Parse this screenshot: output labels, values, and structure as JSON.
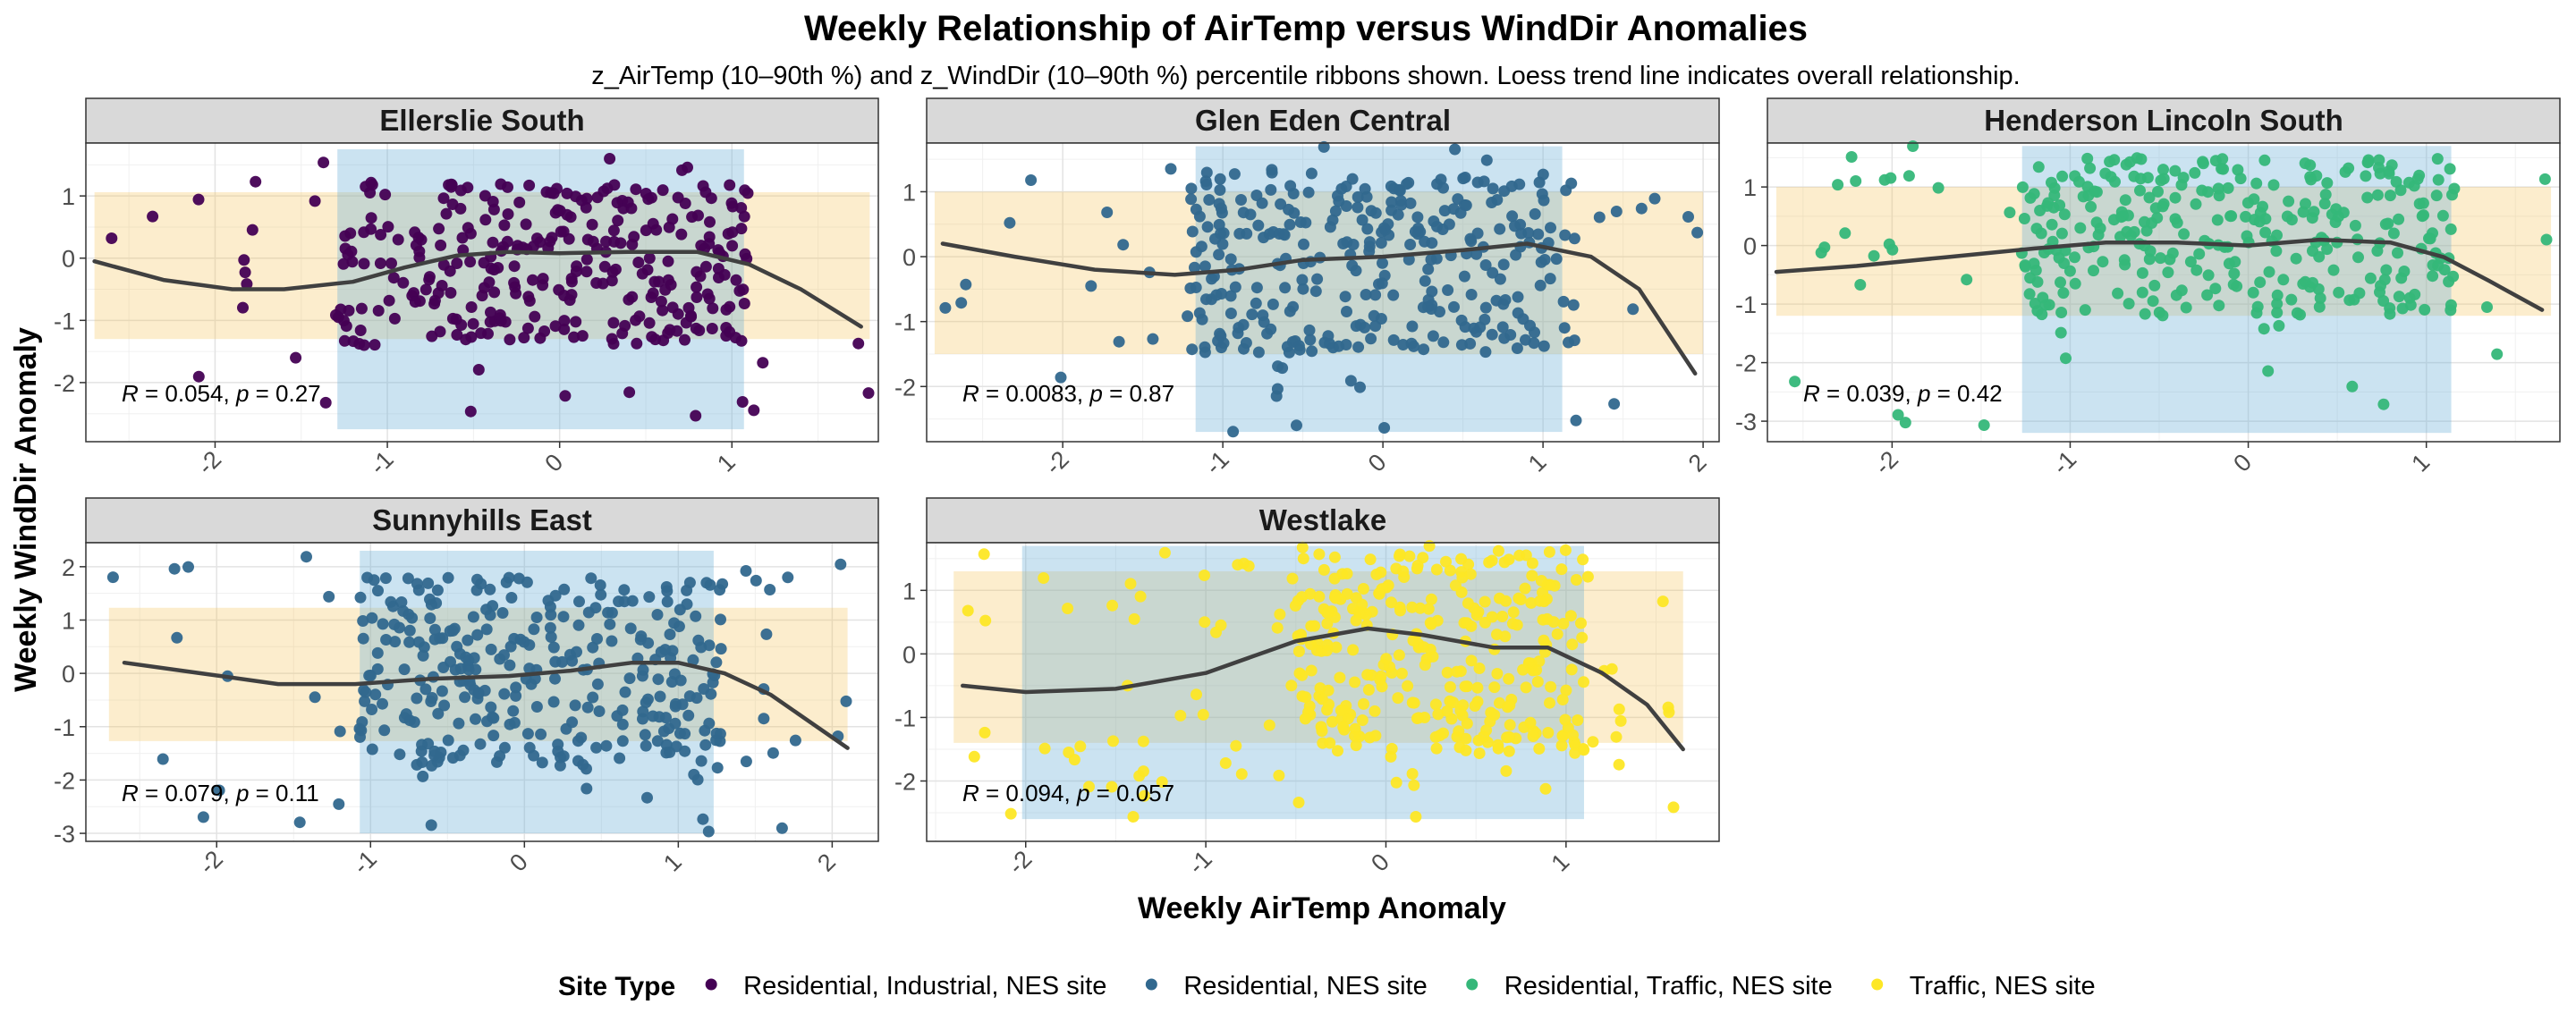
{
  "title": "Weekly Relationship of AirTemp versus WindDir Anomalies",
  "subtitle": "z_AirTemp (10–90th %) and z_WindDir (10–90th %) percentile ribbons shown. Loess trend line indicates overall relationship.",
  "x_label": "Weekly AirTemp Anomaly",
  "y_label": "Weekly WindDir Anomaly",
  "legend": {
    "title": "Site Type",
    "items": [
      {
        "label": "Residential, Industrial, NES site",
        "color": "#440154"
      },
      {
        "label": "Residential, NES site",
        "color": "#31688E"
      },
      {
        "label": "Residential, Traffic, NES site",
        "color": "#35B779"
      },
      {
        "label": "Traffic, NES site",
        "color": "#FDE725"
      }
    ]
  },
  "chart_data": {
    "type": "scatter",
    "facets": [
      {
        "name": "Ellerslie South",
        "site_type": "Residential, Industrial, NES site",
        "xlim": [
          -2.75,
          1.85
        ],
        "ylim": [
          -2.95,
          1.85
        ],
        "x_ticks": [
          -2,
          -1,
          0,
          1,
          2
        ],
        "y_ticks": [
          -2,
          -1,
          0,
          1
        ],
        "x_tick_labels": [
          "-2",
          "-1",
          "0",
          "1",
          "2"
        ],
        "y_tick_labels": [
          "-2",
          "-1",
          "0",
          "1"
        ],
        "x_ribbon": [
          -1.29,
          1.07
        ],
        "y_ribbon": [
          -1.3,
          1.06
        ],
        "stat": {
          "R": "0.054",
          "p": "0.27"
        },
        "trend": [
          [
            -2.7,
            -0.05
          ],
          [
            -2.3,
            -0.35
          ],
          [
            -1.9,
            -0.5
          ],
          [
            -1.6,
            -0.5
          ],
          [
            -1.2,
            -0.38
          ],
          [
            -0.9,
            -0.15
          ],
          [
            -0.6,
            0.04
          ],
          [
            -0.3,
            0.1
          ],
          [
            0,
            0.08
          ],
          [
            0.4,
            0.1
          ],
          [
            0.8,
            0.1
          ],
          [
            1.1,
            -0.1
          ],
          [
            1.4,
            -0.5
          ],
          [
            1.75,
            -1.1
          ]
        ],
        "x_range": [
          -2.7,
          1.8
        ],
        "y_range": [
          -2.75,
          1.75
        ],
        "x_core": [
          -1.3,
          1.1
        ],
        "y_core": [
          -1.4,
          1.2
        ],
        "n_outer": 45,
        "n_core": 290,
        "seed": 11
      },
      {
        "name": "Glen Eden Central",
        "site_type": "Residential, NES site",
        "xlim": [
          -2.85,
          2.1
        ],
        "ylim": [
          -2.85,
          1.75
        ],
        "x_ticks": [
          -2,
          -1,
          0,
          1,
          2
        ],
        "y_ticks": [
          -2,
          -1,
          0,
          1
        ],
        "x_tick_labels": [
          "-2",
          "-1",
          "0",
          "1",
          "2"
        ],
        "y_tick_labels": [
          "-2",
          "-1",
          "0",
          "1"
        ],
        "x_ribbon": [
          -1.17,
          1.12
        ],
        "y_ribbon": [
          -1.5,
          1.0
        ],
        "stat": {
          "R": "0.0083",
          "p": "0.87"
        },
        "trend": [
          [
            -2.75,
            0.2
          ],
          [
            -2.3,
            0.0
          ],
          [
            -1.8,
            -0.2
          ],
          [
            -1.3,
            -0.28
          ],
          [
            -0.9,
            -0.2
          ],
          [
            -0.5,
            -0.05
          ],
          [
            0,
            0.0
          ],
          [
            0.5,
            0.1
          ],
          [
            0.9,
            0.2
          ],
          [
            1.3,
            0.0
          ],
          [
            1.6,
            -0.5
          ],
          [
            1.95,
            -1.8
          ]
        ],
        "x_range": [
          -2.8,
          2.0
        ],
        "y_range": [
          -2.7,
          1.7
        ],
        "x_core": [
          -1.2,
          1.2
        ],
        "y_core": [
          -1.5,
          1.3
        ],
        "n_outer": 50,
        "n_core": 290,
        "seed": 23
      },
      {
        "name": "Henderson Lincoln South",
        "site_type": "Residential, Traffic, NES site",
        "xlim": [
          -2.7,
          1.75
        ],
        "ylim": [
          -3.35,
          1.75
        ],
        "x_ticks": [
          -2,
          -1,
          0,
          1
        ],
        "y_ticks": [
          -3,
          -2,
          -1,
          0,
          1
        ],
        "x_tick_labels": [
          "-2",
          "-1",
          "0",
          "1"
        ],
        "y_tick_labels": [
          "-3",
          "-2",
          "-1",
          "0",
          "1"
        ],
        "x_ribbon": [
          -1.27,
          1.14
        ],
        "y_ribbon": [
          -1.2,
          1.0
        ],
        "stat": {
          "R": "0.039",
          "p": "0.42"
        },
        "trend": [
          [
            -2.65,
            -0.45
          ],
          [
            -2.2,
            -0.35
          ],
          [
            -1.7,
            -0.2
          ],
          [
            -1.2,
            -0.05
          ],
          [
            -0.8,
            0.05
          ],
          [
            -0.4,
            0.05
          ],
          [
            0,
            0.0
          ],
          [
            0.4,
            0.1
          ],
          [
            0.8,
            0.05
          ],
          [
            1.1,
            -0.2
          ],
          [
            1.35,
            -0.6
          ],
          [
            1.65,
            -1.1
          ]
        ],
        "x_range": [
          -2.65,
          1.7
        ],
        "y_range": [
          -3.2,
          1.7
        ],
        "x_core": [
          -1.3,
          1.2
        ],
        "y_core": [
          -1.2,
          1.5
        ],
        "n_outer": 50,
        "n_core": 290,
        "seed": 37
      },
      {
        "name": "Sunnyhills East",
        "site_type": "Residential, NES site",
        "xlim": [
          -2.85,
          2.3
        ],
        "ylim": [
          -3.15,
          2.45
        ],
        "x_ticks": [
          -2,
          -1,
          0,
          1,
          2
        ],
        "y_ticks": [
          -3,
          -2,
          -1,
          0,
          1,
          2
        ],
        "x_tick_labels": [
          "-2",
          "-1",
          "0",
          "1",
          "2"
        ],
        "y_tick_labels": [
          "-3",
          "-2",
          "-1",
          "0",
          "1",
          "2"
        ],
        "x_ribbon": [
          -1.07,
          1.23
        ],
        "y_ribbon": [
          -1.27,
          1.23
        ],
        "stat": {
          "R": "0.079",
          "p": "0.11"
        },
        "trend": [
          [
            -2.6,
            0.2
          ],
          [
            -2.1,
            0.0
          ],
          [
            -1.6,
            -0.2
          ],
          [
            -1.1,
            -0.2
          ],
          [
            -0.6,
            -0.1
          ],
          [
            -0.1,
            -0.05
          ],
          [
            0.3,
            0.05
          ],
          [
            0.7,
            0.2
          ],
          [
            1.0,
            0.2
          ],
          [
            1.3,
            0.0
          ],
          [
            1.6,
            -0.4
          ],
          [
            2.1,
            -1.4
          ]
        ],
        "x_range": [
          -2.7,
          2.1
        ],
        "y_range": [
          -3.0,
          2.3
        ],
        "x_core": [
          -1.1,
          1.3
        ],
        "y_core": [
          -1.8,
          1.8
        ],
        "n_outer": 55,
        "n_core": 290,
        "seed": 41
      },
      {
        "name": "Westlake",
        "site_type": "Traffic, NES site",
        "xlim": [
          -2.55,
          1.85
        ],
        "ylim": [
          -2.95,
          1.75
        ],
        "x_ticks": [
          -2,
          -1,
          0,
          1
        ],
        "y_ticks": [
          -2,
          -1,
          0,
          1
        ],
        "x_tick_labels": [
          "-2",
          "-1",
          "0",
          "1"
        ],
        "y_tick_labels": [
          "-2",
          "-1",
          "0",
          "1"
        ],
        "x_ribbon": [
          -2.02,
          1.1
        ],
        "y_ribbon": [
          -1.4,
          1.3
        ],
        "stat": {
          "R": "0.094",
          "p": "0.057"
        },
        "trend": [
          [
            -2.35,
            -0.5
          ],
          [
            -2.0,
            -0.6
          ],
          [
            -1.5,
            -0.55
          ],
          [
            -1.0,
            -0.3
          ],
          [
            -0.5,
            0.2
          ],
          [
            -0.1,
            0.4
          ],
          [
            0.2,
            0.3
          ],
          [
            0.6,
            0.1
          ],
          [
            0.9,
            0.1
          ],
          [
            1.2,
            -0.3
          ],
          [
            1.45,
            -0.8
          ],
          [
            1.65,
            -1.5
          ]
        ],
        "x_range": [
          -2.4,
          1.65
        ],
        "y_range": [
          -2.6,
          1.7
        ],
        "x_core": [
          -0.5,
          1.1
        ],
        "y_core": [
          -1.6,
          1.7
        ],
        "n_outer": 90,
        "n_core": 280,
        "seed": 53
      }
    ]
  }
}
